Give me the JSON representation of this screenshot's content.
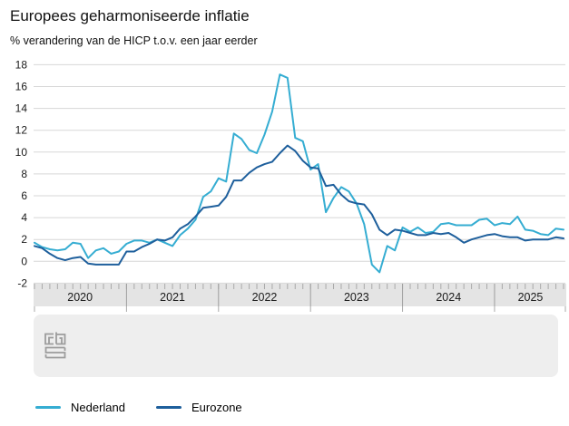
{
  "header": {
    "title": "Europees geharmoniseerde inflatie",
    "subtitle": "% verandering van de HICP t.o.v. een jaar eerder"
  },
  "branding": {
    "logo": "cbs-logo"
  },
  "chart_data": {
    "type": "line",
    "title": "Europees geharmoniseerde inflatie",
    "subtitle": "% verandering van de HICP t.o.v. een jaar eerder",
    "x_unit": "month",
    "x_start": "2020-01",
    "x_end": "2025-10",
    "year_labels": [
      "2020",
      "2021",
      "2022",
      "2023",
      "2024",
      "2025"
    ],
    "ylim": [
      -2,
      18
    ],
    "ytick_step": 2,
    "grid": "horizontal",
    "legend_position": "bottom-left",
    "colors": {
      "grid": "#d7d7d7",
      "axis_band": "#e4e4e4",
      "tick": "#a9a9a9",
      "year_separator": "#9e9e9e",
      "label": "#1a1a1a",
      "footer_bg": "#eeeeee",
      "logo_gray": "#9c9c9c"
    },
    "series": [
      {
        "name": "Nederland",
        "color": "#35add2",
        "values": [
          1.7,
          1.3,
          1.1,
          1.0,
          1.1,
          1.7,
          1.6,
          0.3,
          1.0,
          1.2,
          0.7,
          0.9,
          1.6,
          1.9,
          1.9,
          1.7,
          2.0,
          1.7,
          1.4,
          2.4,
          3.0,
          3.8,
          5.9,
          6.4,
          7.6,
          7.3,
          11.7,
          11.2,
          10.2,
          9.9,
          11.6,
          13.7,
          17.1,
          16.8,
          11.3,
          11.0,
          8.4,
          8.9,
          4.5,
          5.8,
          6.8,
          6.4,
          5.3,
          3.4,
          -0.3,
          -1.0,
          1.4,
          1.0,
          3.1,
          2.7,
          3.1,
          2.6,
          2.7,
          3.4,
          3.5,
          3.3,
          3.3,
          3.3,
          3.8,
          3.9,
          3.3,
          3.5,
          3.4,
          4.1,
          2.9,
          2.8,
          2.5,
          2.4,
          3.0,
          2.9
        ]
      },
      {
        "name": "Eurozone",
        "color": "#1e5f9c",
        "values": [
          1.4,
          1.2,
          0.7,
          0.3,
          0.1,
          0.3,
          0.4,
          -0.2,
          -0.3,
          -0.3,
          -0.3,
          -0.3,
          0.9,
          0.9,
          1.3,
          1.6,
          2.0,
          1.9,
          2.2,
          3.0,
          3.4,
          4.1,
          4.9,
          5.0,
          5.1,
          5.9,
          7.4,
          7.4,
          8.1,
          8.6,
          8.9,
          9.1,
          9.9,
          10.6,
          10.1,
          9.2,
          8.6,
          8.5,
          6.9,
          7.0,
          6.1,
          5.5,
          5.3,
          5.2,
          4.3,
          2.9,
          2.4,
          2.9,
          2.8,
          2.6,
          2.4,
          2.4,
          2.6,
          2.5,
          2.6,
          2.2,
          1.7,
          2.0,
          2.2,
          2.4,
          2.5,
          2.3,
          2.2,
          2.2,
          1.9,
          2.0,
          2.0,
          2.0,
          2.2,
          2.1
        ]
      }
    ]
  }
}
